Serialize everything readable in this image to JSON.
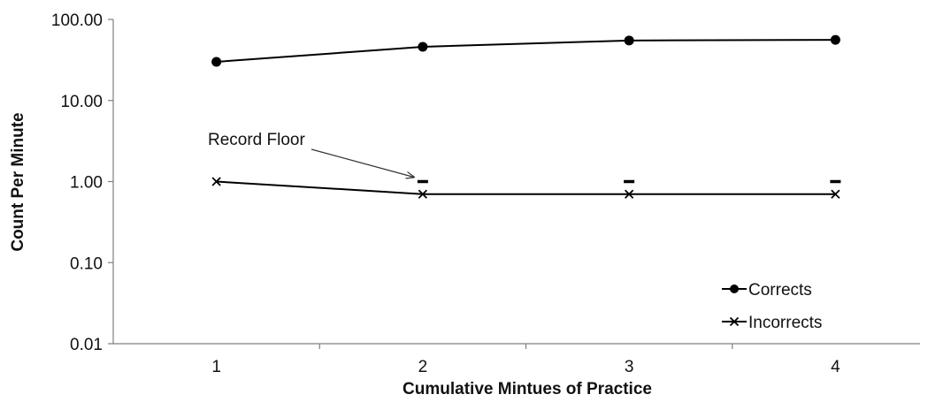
{
  "chart_data": {
    "type": "line",
    "title": "",
    "xlabel": "Cumulative Mintues of Practice",
    "ylabel": "Count Per Minute",
    "x": [
      1,
      2,
      3,
      4
    ],
    "x_tick_labels": [
      "1",
      "2",
      "3",
      "4"
    ],
    "ylim": [
      0.01,
      100
    ],
    "yscale": "log",
    "y_tick_values": [
      0.01,
      0.1,
      1,
      10,
      100
    ],
    "y_tick_labels": [
      "0.01",
      "0.10",
      "1.00",
      "10.00",
      "100.00"
    ],
    "grid": false,
    "legend_position": "bottom-right",
    "series": [
      {
        "name": "Corrects",
        "marker": "circle",
        "values": [
          30,
          46,
          55,
          56
        ]
      },
      {
        "name": "Incorrects",
        "marker": "x",
        "values": [
          1.0,
          0.7,
          0.7,
          0.7
        ]
      }
    ],
    "record_floor": {
      "x": [
        2,
        3,
        4
      ],
      "values": [
        1.0,
        1.0,
        1.0
      ]
    },
    "annotations": [
      {
        "text": "Record Floor",
        "points_to": {
          "x": 2,
          "y": 1.0
        }
      }
    ]
  }
}
